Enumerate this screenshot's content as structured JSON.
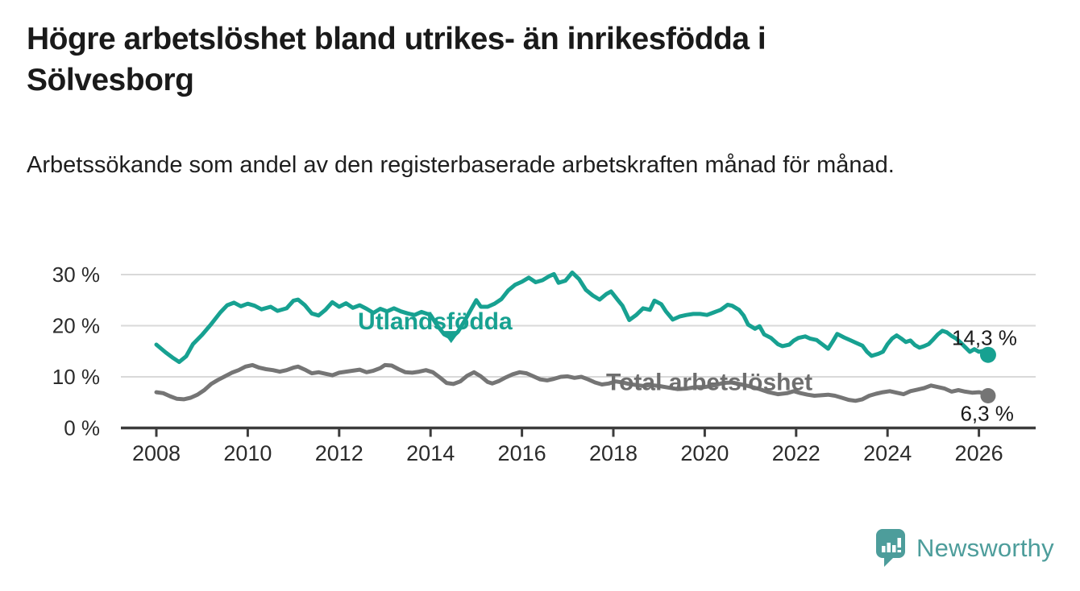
{
  "header": {
    "title": "Högre arbetslöshet bland utrikes- än inrikesfödda i Sölvesborg",
    "subtitle": "Arbetssökande som andel av den registerbaserade arbetskraften månad för månad."
  },
  "footer": {
    "brand": "Newsworthy"
  },
  "colors": {
    "foreign_born": "#17A191",
    "total": "#757575",
    "total_label": "#6E6E6E",
    "grid": "#D9D9D9",
    "axis": "#3C3C3C",
    "tick_text": "#2B2B2B",
    "value_text": "#1A1A1A",
    "brand": "#4D9D9B"
  },
  "chart_data": {
    "type": "line",
    "title": "Högre arbetslöshet bland utrikes- än inrikesfödda i Sölvesborg",
    "subtitle": "Arbetssökande som andel av den registerbaserade arbetskraften månad för månad.",
    "xlabel": "",
    "ylabel": "",
    "grid": "horizontal",
    "legend_position": "inline-labels",
    "x_axis": {
      "range": [
        2007.3,
        2027.2
      ],
      "ticks": [
        {
          "value": 2008,
          "label": "2008"
        },
        {
          "value": 2010,
          "label": "2010"
        },
        {
          "value": 2012,
          "label": "2012"
        },
        {
          "value": 2014,
          "label": "2014"
        },
        {
          "value": 2016,
          "label": "2016"
        },
        {
          "value": 2018,
          "label": "2018"
        },
        {
          "value": 2020,
          "label": "2020"
        },
        {
          "value": 2022,
          "label": "2022"
        },
        {
          "value": 2024,
          "label": "2024"
        },
        {
          "value": 2026,
          "label": "2026"
        }
      ]
    },
    "y_axis": {
      "range": [
        0,
        32
      ],
      "unit": "%",
      "ticks": [
        {
          "value": 0,
          "label": "0 %"
        },
        {
          "value": 10,
          "label": "10 %"
        },
        {
          "value": 20,
          "label": "20 %"
        },
        {
          "value": 30,
          "label": "30 %"
        }
      ]
    },
    "series": [
      {
        "name": "Utlandsfödda",
        "color": "#17A191",
        "end_label": "14,3 %",
        "end_value": 14.3,
        "end_label_position": "above",
        "points": [
          [
            2008.0,
            16.3
          ],
          [
            2008.2,
            14.8
          ],
          [
            2008.35,
            13.8
          ],
          [
            2008.5,
            12.9
          ],
          [
            2008.65,
            14.0
          ],
          [
            2008.8,
            16.4
          ],
          [
            2009.0,
            18.2
          ],
          [
            2009.2,
            20.3
          ],
          [
            2009.4,
            22.6
          ],
          [
            2009.55,
            24.0
          ],
          [
            2009.7,
            24.5
          ],
          [
            2009.85,
            23.8
          ],
          [
            2010.0,
            24.3
          ],
          [
            2010.15,
            23.9
          ],
          [
            2010.3,
            23.2
          ],
          [
            2010.5,
            23.7
          ],
          [
            2010.65,
            22.9
          ],
          [
            2010.85,
            23.4
          ],
          [
            2011.0,
            24.9
          ],
          [
            2011.1,
            25.1
          ],
          [
            2011.25,
            24.0
          ],
          [
            2011.4,
            22.4
          ],
          [
            2011.55,
            22.0
          ],
          [
            2011.7,
            23.1
          ],
          [
            2011.85,
            24.6
          ],
          [
            2012.0,
            23.7
          ],
          [
            2012.15,
            24.4
          ],
          [
            2012.3,
            23.5
          ],
          [
            2012.45,
            24.0
          ],
          [
            2012.6,
            23.3
          ],
          [
            2012.75,
            22.5
          ],
          [
            2012.9,
            23.3
          ],
          [
            2013.05,
            22.8
          ],
          [
            2013.2,
            23.4
          ],
          [
            2013.35,
            22.8
          ],
          [
            2013.5,
            22.4
          ],
          [
            2013.65,
            22.1
          ],
          [
            2013.8,
            22.7
          ],
          [
            2014.0,
            22.1
          ],
          [
            2014.15,
            20.0
          ],
          [
            2014.3,
            18.3
          ],
          [
            2014.45,
            17.6
          ],
          [
            2014.6,
            18.8
          ],
          [
            2014.75,
            21.0
          ],
          [
            2014.9,
            23.4
          ],
          [
            2015.0,
            25.0
          ],
          [
            2015.1,
            23.7
          ],
          [
            2015.25,
            23.7
          ],
          [
            2015.4,
            24.3
          ],
          [
            2015.55,
            25.2
          ],
          [
            2015.7,
            26.9
          ],
          [
            2015.85,
            28.0
          ],
          [
            2016.0,
            28.6
          ],
          [
            2016.15,
            29.4
          ],
          [
            2016.3,
            28.5
          ],
          [
            2016.45,
            28.9
          ],
          [
            2016.6,
            29.7
          ],
          [
            2016.7,
            30.1
          ],
          [
            2016.8,
            28.4
          ],
          [
            2016.95,
            28.8
          ],
          [
            2017.1,
            30.4
          ],
          [
            2017.25,
            29.1
          ],
          [
            2017.4,
            27.0
          ],
          [
            2017.55,
            25.9
          ],
          [
            2017.7,
            25.1
          ],
          [
            2017.85,
            26.2
          ],
          [
            2017.95,
            26.7
          ],
          [
            2018.1,
            25.0
          ],
          [
            2018.2,
            23.9
          ],
          [
            2018.35,
            21.1
          ],
          [
            2018.5,
            22.1
          ],
          [
            2018.65,
            23.4
          ],
          [
            2018.8,
            23.1
          ],
          [
            2018.9,
            24.9
          ],
          [
            2019.05,
            24.2
          ],
          [
            2019.15,
            22.8
          ],
          [
            2019.3,
            21.2
          ],
          [
            2019.45,
            21.8
          ],
          [
            2019.6,
            22.1
          ],
          [
            2019.75,
            22.3
          ],
          [
            2019.9,
            22.3
          ],
          [
            2020.05,
            22.1
          ],
          [
            2020.2,
            22.6
          ],
          [
            2020.35,
            23.1
          ],
          [
            2020.5,
            24.1
          ],
          [
            2020.6,
            23.9
          ],
          [
            2020.75,
            23.1
          ],
          [
            2020.85,
            22.0
          ],
          [
            2020.95,
            20.2
          ],
          [
            2021.1,
            19.4
          ],
          [
            2021.2,
            19.9
          ],
          [
            2021.3,
            18.3
          ],
          [
            2021.45,
            17.6
          ],
          [
            2021.6,
            16.4
          ],
          [
            2021.7,
            16.0
          ],
          [
            2021.85,
            16.3
          ],
          [
            2021.95,
            17.1
          ],
          [
            2022.05,
            17.6
          ],
          [
            2022.2,
            17.9
          ],
          [
            2022.3,
            17.5
          ],
          [
            2022.45,
            17.2
          ],
          [
            2022.55,
            16.5
          ],
          [
            2022.7,
            15.5
          ],
          [
            2022.8,
            16.9
          ],
          [
            2022.9,
            18.4
          ],
          [
            2023.05,
            17.7
          ],
          [
            2023.2,
            17.1
          ],
          [
            2023.3,
            16.7
          ],
          [
            2023.45,
            16.1
          ],
          [
            2023.55,
            14.9
          ],
          [
            2023.65,
            14.1
          ],
          [
            2023.8,
            14.5
          ],
          [
            2023.9,
            14.9
          ],
          [
            2024.0,
            16.4
          ],
          [
            2024.1,
            17.5
          ],
          [
            2024.2,
            18.1
          ],
          [
            2024.3,
            17.5
          ],
          [
            2024.4,
            16.8
          ],
          [
            2024.5,
            17.1
          ],
          [
            2024.6,
            16.2
          ],
          [
            2024.7,
            15.7
          ],
          [
            2024.8,
            16.0
          ],
          [
            2024.9,
            16.4
          ],
          [
            2025.0,
            17.3
          ],
          [
            2025.1,
            18.3
          ],
          [
            2025.2,
            19.0
          ],
          [
            2025.3,
            18.7
          ],
          [
            2025.4,
            18.0
          ],
          [
            2025.5,
            17.5
          ],
          [
            2025.6,
            16.7
          ],
          [
            2025.7,
            15.8
          ],
          [
            2025.8,
            14.9
          ],
          [
            2025.9,
            15.4
          ],
          [
            2026.0,
            14.9
          ],
          [
            2026.1,
            15.1
          ],
          [
            2026.2,
            14.3
          ]
        ]
      },
      {
        "name": "Total arbetslöshet",
        "color": "#757575",
        "end_label": "6,3 %",
        "end_value": 6.3,
        "end_label_position": "below",
        "points": [
          [
            2008.0,
            7.0
          ],
          [
            2008.15,
            6.8
          ],
          [
            2008.3,
            6.2
          ],
          [
            2008.45,
            5.7
          ],
          [
            2008.6,
            5.6
          ],
          [
            2008.75,
            5.9
          ],
          [
            2008.9,
            6.5
          ],
          [
            2009.05,
            7.4
          ],
          [
            2009.2,
            8.6
          ],
          [
            2009.35,
            9.4
          ],
          [
            2009.5,
            10.1
          ],
          [
            2009.65,
            10.8
          ],
          [
            2009.8,
            11.3
          ],
          [
            2009.95,
            12.0
          ],
          [
            2010.1,
            12.3
          ],
          [
            2010.25,
            11.8
          ],
          [
            2010.4,
            11.5
          ],
          [
            2010.55,
            11.3
          ],
          [
            2010.7,
            11.0
          ],
          [
            2010.85,
            11.3
          ],
          [
            2011.0,
            11.8
          ],
          [
            2011.1,
            12.0
          ],
          [
            2011.25,
            11.4
          ],
          [
            2011.4,
            10.7
          ],
          [
            2011.55,
            10.9
          ],
          [
            2011.7,
            10.6
          ],
          [
            2011.85,
            10.3
          ],
          [
            2012.0,
            10.8
          ],
          [
            2012.15,
            11.0
          ],
          [
            2012.3,
            11.2
          ],
          [
            2012.45,
            11.4
          ],
          [
            2012.6,
            10.9
          ],
          [
            2012.75,
            11.2
          ],
          [
            2012.9,
            11.7
          ],
          [
            2013.0,
            12.3
          ],
          [
            2013.15,
            12.2
          ],
          [
            2013.3,
            11.5
          ],
          [
            2013.45,
            10.9
          ],
          [
            2013.6,
            10.8
          ],
          [
            2013.75,
            11.0
          ],
          [
            2013.9,
            11.3
          ],
          [
            2014.05,
            10.9
          ],
          [
            2014.2,
            9.9
          ],
          [
            2014.35,
            8.8
          ],
          [
            2014.5,
            8.6
          ],
          [
            2014.65,
            9.1
          ],
          [
            2014.8,
            10.2
          ],
          [
            2014.95,
            10.9
          ],
          [
            2015.1,
            10.1
          ],
          [
            2015.25,
            9.0
          ],
          [
            2015.35,
            8.7
          ],
          [
            2015.5,
            9.2
          ],
          [
            2015.65,
            9.9
          ],
          [
            2015.8,
            10.5
          ],
          [
            2015.95,
            10.9
          ],
          [
            2016.1,
            10.7
          ],
          [
            2016.25,
            10.1
          ],
          [
            2016.4,
            9.5
          ],
          [
            2016.55,
            9.3
          ],
          [
            2016.7,
            9.6
          ],
          [
            2016.85,
            10.0
          ],
          [
            2017.0,
            10.1
          ],
          [
            2017.15,
            9.8
          ],
          [
            2017.3,
            10.0
          ],
          [
            2017.45,
            9.5
          ],
          [
            2017.6,
            8.9
          ],
          [
            2017.75,
            8.5
          ],
          [
            2017.9,
            8.7
          ],
          [
            2018.05,
            9.1
          ],
          [
            2018.2,
            8.9
          ],
          [
            2018.35,
            8.6
          ],
          [
            2018.5,
            8.4
          ],
          [
            2018.65,
            8.2
          ],
          [
            2018.8,
            8.4
          ],
          [
            2019.0,
            8.2
          ],
          [
            2019.2,
            7.9
          ],
          [
            2019.4,
            7.6
          ],
          [
            2019.6,
            7.7
          ],
          [
            2019.8,
            8.0
          ],
          [
            2020.0,
            8.0
          ],
          [
            2020.2,
            8.3
          ],
          [
            2020.4,
            8.8
          ],
          [
            2020.6,
            8.9
          ],
          [
            2020.8,
            8.5
          ],
          [
            2021.0,
            8.1
          ],
          [
            2021.2,
            7.6
          ],
          [
            2021.4,
            7.0
          ],
          [
            2021.6,
            6.6
          ],
          [
            2021.8,
            6.8
          ],
          [
            2021.95,
            7.2
          ],
          [
            2022.1,
            6.8
          ],
          [
            2022.25,
            6.5
          ],
          [
            2022.4,
            6.3
          ],
          [
            2022.55,
            6.4
          ],
          [
            2022.7,
            6.5
          ],
          [
            2022.85,
            6.3
          ],
          [
            2023.0,
            5.9
          ],
          [
            2023.15,
            5.5
          ],
          [
            2023.3,
            5.3
          ],
          [
            2023.45,
            5.6
          ],
          [
            2023.6,
            6.3
          ],
          [
            2023.75,
            6.7
          ],
          [
            2023.9,
            7.0
          ],
          [
            2024.05,
            7.2
          ],
          [
            2024.2,
            6.9
          ],
          [
            2024.35,
            6.6
          ],
          [
            2024.5,
            7.2
          ],
          [
            2024.65,
            7.5
          ],
          [
            2024.8,
            7.8
          ],
          [
            2024.95,
            8.3
          ],
          [
            2025.1,
            8.0
          ],
          [
            2025.25,
            7.7
          ],
          [
            2025.4,
            7.1
          ],
          [
            2025.55,
            7.4
          ],
          [
            2025.7,
            7.1
          ],
          [
            2025.85,
            6.9
          ],
          [
            2026.0,
            7.0
          ],
          [
            2026.1,
            6.8
          ],
          [
            2026.2,
            6.3
          ]
        ]
      }
    ],
    "annotations": [
      {
        "text": "Utlandsfödda",
        "color": "#17A191",
        "x": 2014.1,
        "y": 20.9,
        "arrow_to": {
          "x": 2014.45,
          "y": 16.6
        }
      },
      {
        "text": "Total arbetslöshet",
        "color": "#6E6E6E",
        "x": 2020.1,
        "y": 9.0
      }
    ]
  }
}
